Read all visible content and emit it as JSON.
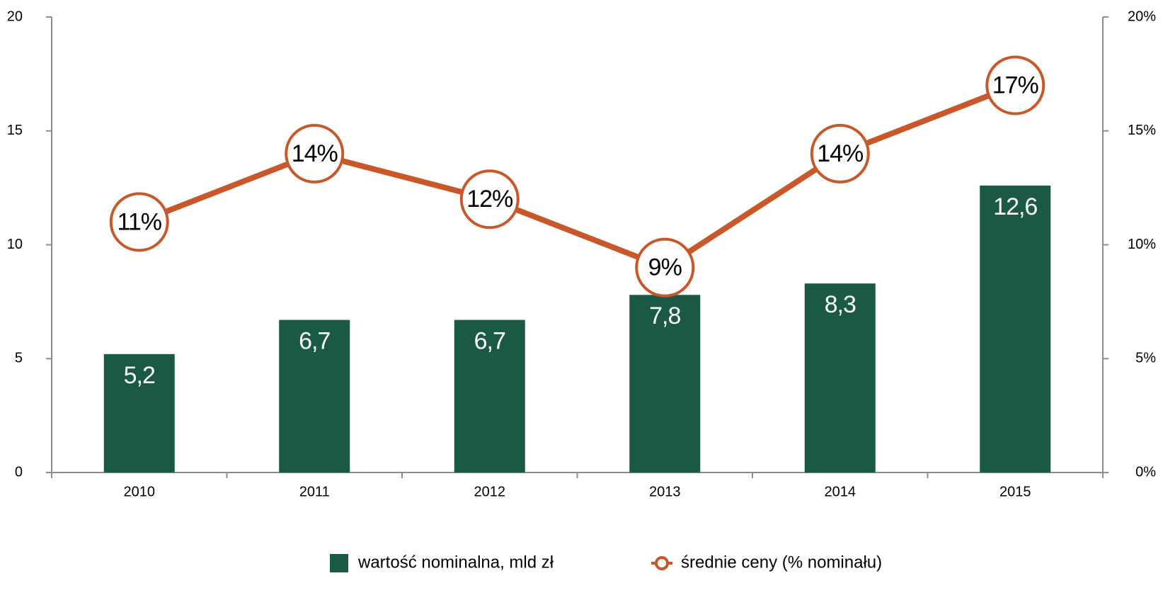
{
  "chart_data": {
    "type": "bar",
    "categories": [
      "2010",
      "2011",
      "2012",
      "2013",
      "2014",
      "2015"
    ],
    "series": [
      {
        "name": "wartość nominalna, mld zł",
        "type": "bar",
        "color": "#1a5945",
        "values": [
          5.2,
          6.7,
          6.7,
          7.8,
          8.3,
          12.6
        ],
        "value_labels": [
          "5,2",
          "6,7",
          "6,7",
          "7,8",
          "8,3",
          "12,6"
        ]
      },
      {
        "name": "średnie ceny (% nominału)",
        "type": "line",
        "axis": "y2",
        "color": "#c8572a",
        "values": [
          11,
          14,
          12,
          9,
          14,
          17
        ],
        "value_labels": [
          "11%",
          "14%",
          "12%",
          "9%",
          "14%",
          "17%"
        ]
      }
    ],
    "ylim": [
      0,
      20
    ],
    "yticks": [
      0,
      5,
      10,
      15,
      20
    ],
    "y2lim": [
      0,
      20
    ],
    "y2ticks": [
      {
        "value": 0,
        "label": "0%"
      },
      {
        "value": 5,
        "label": "5%"
      },
      {
        "value": 10,
        "label": "10%"
      },
      {
        "value": 15,
        "label": "15%"
      },
      {
        "value": 20,
        "label": "20%"
      }
    ],
    "grid": false
  }
}
